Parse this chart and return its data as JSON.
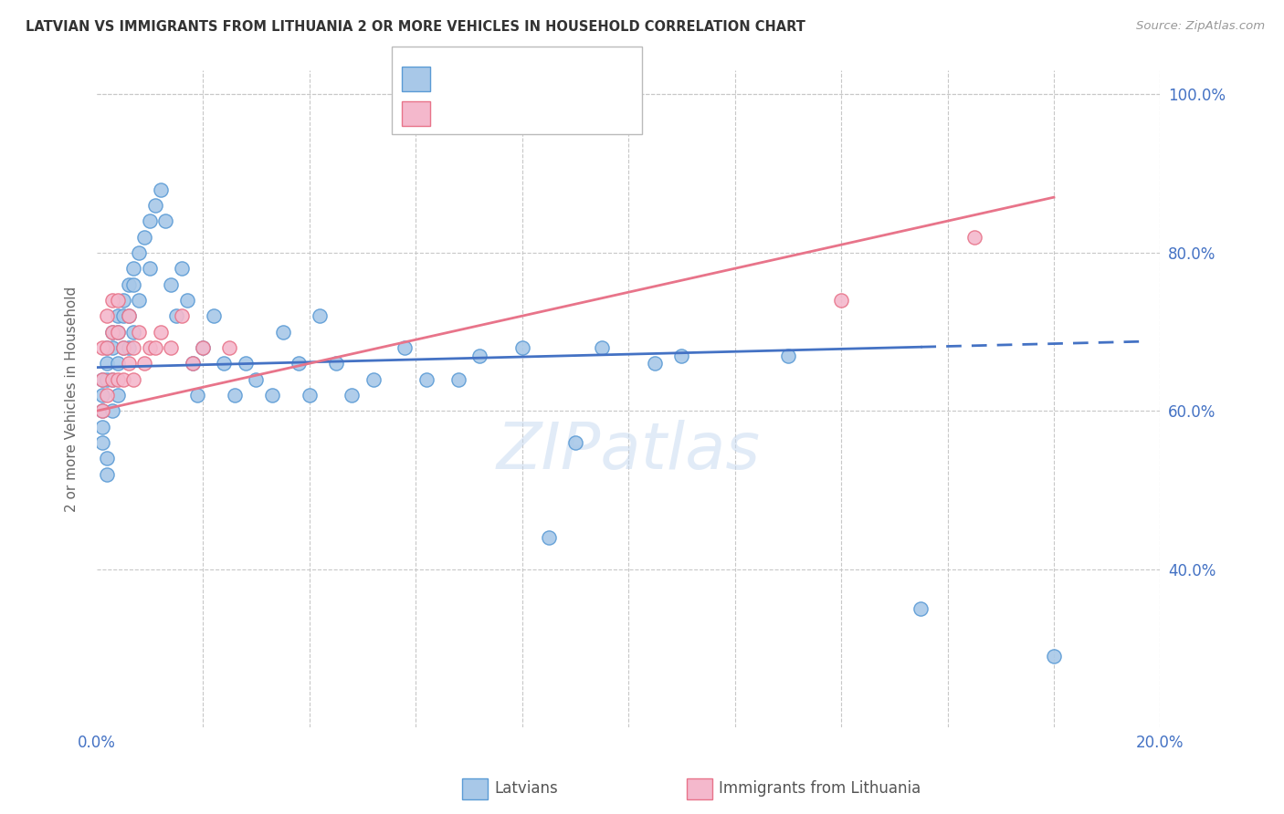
{
  "title": "LATVIAN VS IMMIGRANTS FROM LITHUANIA 2 OR MORE VEHICLES IN HOUSEHOLD CORRELATION CHART",
  "source": "Source: ZipAtlas.com",
  "ylabel": "2 or more Vehicles in Household",
  "xlim": [
    0.0,
    0.2
  ],
  "ylim": [
    0.2,
    1.03
  ],
  "ytick_values": [
    0.4,
    0.6,
    0.8,
    1.0
  ],
  "ytick_labels": [
    "40.0%",
    "60.0%",
    "80.0%",
    "100.0%"
  ],
  "xtick_values": [
    0.0,
    0.02,
    0.04,
    0.06,
    0.08,
    0.1,
    0.12,
    0.14,
    0.16,
    0.18,
    0.2
  ],
  "xtick_labels": [
    "0.0%",
    "",
    "",
    "",
    "",
    "",
    "",
    "",
    "",
    "",
    "20.0%"
  ],
  "color_latvian_fill": "#a8c8e8",
  "color_latvian_edge": "#5b9bd5",
  "color_immigrant_fill": "#f4b8cc",
  "color_immigrant_edge": "#e8748a",
  "color_latvian_line": "#4472c4",
  "color_immigrant_line": "#e8748a",
  "color_axis_text": "#4472c4",
  "color_grid": "#c8c8c8",
  "background_color": "#ffffff",
  "latvian_x": [
    0.001,
    0.001,
    0.001,
    0.001,
    0.001,
    0.002,
    0.002,
    0.002,
    0.002,
    0.002,
    0.003,
    0.003,
    0.003,
    0.003,
    0.004,
    0.004,
    0.004,
    0.004,
    0.005,
    0.005,
    0.005,
    0.006,
    0.006,
    0.006,
    0.007,
    0.007,
    0.007,
    0.008,
    0.008,
    0.009,
    0.01,
    0.01,
    0.011,
    0.012,
    0.013,
    0.014,
    0.015,
    0.016,
    0.017,
    0.018,
    0.019,
    0.02,
    0.022,
    0.024,
    0.026,
    0.028,
    0.03,
    0.033,
    0.035,
    0.038,
    0.04,
    0.042,
    0.045,
    0.048,
    0.052,
    0.058,
    0.062,
    0.068,
    0.072,
    0.08,
    0.085,
    0.09,
    0.095,
    0.105,
    0.11,
    0.13,
    0.155,
    0.18
  ],
  "latvian_y": [
    0.64,
    0.62,
    0.6,
    0.58,
    0.56,
    0.68,
    0.66,
    0.64,
    0.54,
    0.52,
    0.7,
    0.68,
    0.64,
    0.6,
    0.72,
    0.7,
    0.66,
    0.62,
    0.74,
    0.72,
    0.68,
    0.76,
    0.72,
    0.68,
    0.78,
    0.76,
    0.7,
    0.8,
    0.74,
    0.82,
    0.84,
    0.78,
    0.86,
    0.88,
    0.84,
    0.76,
    0.72,
    0.78,
    0.74,
    0.66,
    0.62,
    0.68,
    0.72,
    0.66,
    0.62,
    0.66,
    0.64,
    0.62,
    0.7,
    0.66,
    0.62,
    0.72,
    0.66,
    0.62,
    0.64,
    0.68,
    0.64,
    0.64,
    0.67,
    0.68,
    0.44,
    0.56,
    0.68,
    0.66,
    0.67,
    0.67,
    0.35,
    0.29
  ],
  "immigrant_x": [
    0.001,
    0.001,
    0.001,
    0.002,
    0.002,
    0.002,
    0.003,
    0.003,
    0.003,
    0.004,
    0.004,
    0.004,
    0.005,
    0.005,
    0.006,
    0.006,
    0.007,
    0.007,
    0.008,
    0.009,
    0.01,
    0.011,
    0.012,
    0.014,
    0.016,
    0.018,
    0.02,
    0.025,
    0.14,
    0.165
  ],
  "immigrant_y": [
    0.68,
    0.64,
    0.6,
    0.72,
    0.68,
    0.62,
    0.74,
    0.7,
    0.64,
    0.74,
    0.7,
    0.64,
    0.68,
    0.64,
    0.72,
    0.66,
    0.68,
    0.64,
    0.7,
    0.66,
    0.68,
    0.68,
    0.7,
    0.68,
    0.72,
    0.66,
    0.68,
    0.68,
    0.74,
    0.82
  ],
  "marker_size": 120,
  "watermark_text": "ZIPatlas",
  "watermark_color": "#c5d8f0",
  "watermark_alpha": 0.5
}
